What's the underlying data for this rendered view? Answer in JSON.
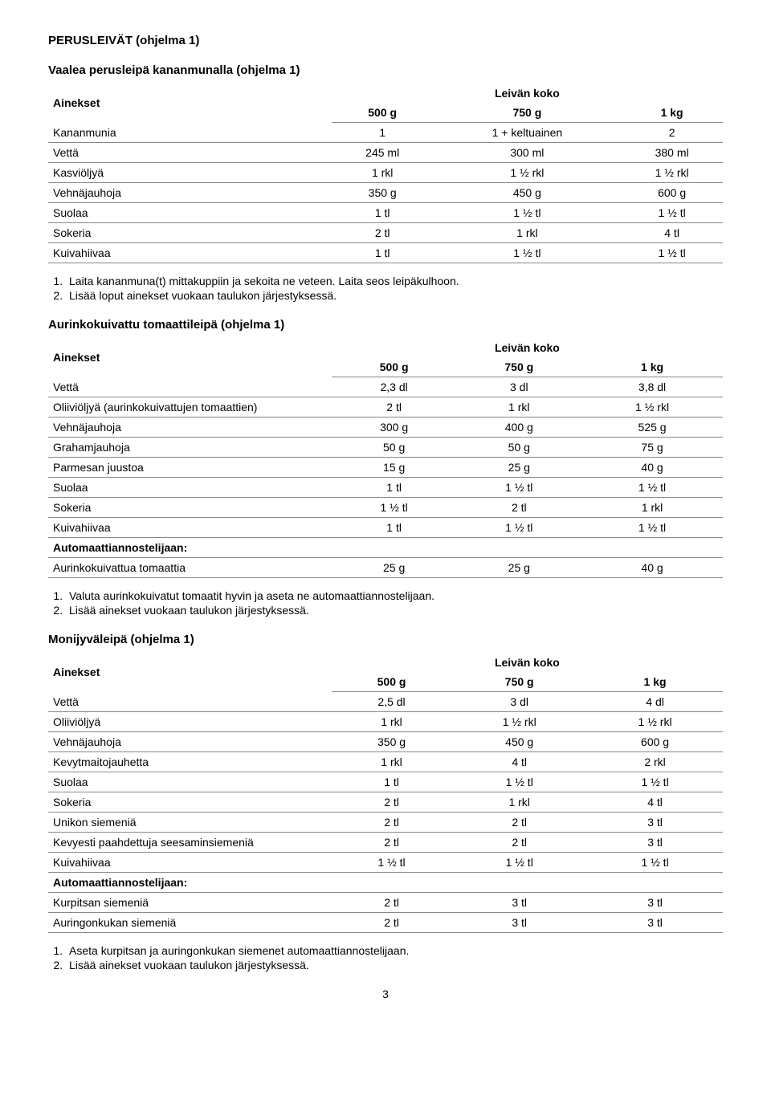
{
  "page": {
    "section_title": "PERUSLEIVÄT (ohjelma 1)",
    "page_number": "3"
  },
  "labels": {
    "ainekset": "Ainekset",
    "leivan_koko": "Leivän koko",
    "automaatti": "Automaattiannostelijaan:"
  },
  "sizes": {
    "s": "500 g",
    "m": "750 g",
    "l": "1 kg"
  },
  "recipe1": {
    "title": "Vaalea perusleipä kananmunalla (ohjelma 1)",
    "rows": [
      {
        "name": "Kananmunia",
        "s": "1",
        "m": "1 + keltuainen",
        "l": "2"
      },
      {
        "name": "Vettä",
        "s": "245 ml",
        "m": "300 ml",
        "l": "380 ml"
      },
      {
        "name": "Kasviöljyä",
        "s": "1 rkl",
        "m": "1 ½ rkl",
        "l": "1 ½ rkl"
      },
      {
        "name": "Vehnäjauhoja",
        "s": "350 g",
        "m": "450 g",
        "l": "600 g"
      },
      {
        "name": "Suolaa",
        "s": "1 tl",
        "m": "1 ½ tl",
        "l": "1 ½ tl"
      },
      {
        "name": "Sokeria",
        "s": "2 tl",
        "m": "1 rkl",
        "l": "4 tl"
      },
      {
        "name": "Kuivahiivaa",
        "s": "1 tl",
        "m": "1 ½ tl",
        "l": "1 ½ tl"
      }
    ],
    "steps": [
      "Laita kananmuna(t) mittakuppiin ja sekoita ne veteen. Laita seos leipäkulhoon.",
      "Lisää loput ainekset vuokaan taulukon järjestyksessä."
    ]
  },
  "recipe2": {
    "title": "Aurinkokuivattu tomaattileipä (ohjelma 1)",
    "rows": [
      {
        "name": "Vettä",
        "s": "2,3 dl",
        "m": "3 dl",
        "l": "3,8 dl"
      },
      {
        "name": "Oliiviöljyä (aurinkokuivattujen tomaattien)",
        "s": "2 tl",
        "m": "1 rkl",
        "l": "1 ½ rkl"
      },
      {
        "name": "Vehnäjauhoja",
        "s": "300 g",
        "m": "400 g",
        "l": "525 g"
      },
      {
        "name": "Grahamjauhoja",
        "s": "50 g",
        "m": "50 g",
        "l": "75 g"
      },
      {
        "name": "Parmesan juustoa",
        "s": "15 g",
        "m": "25 g",
        "l": "40 g"
      },
      {
        "name": "Suolaa",
        "s": "1 tl",
        "m": "1 ½ tl",
        "l": "1 ½ tl"
      },
      {
        "name": "Sokeria",
        "s": "1 ½ tl",
        "m": "2 tl",
        "l": "1 rkl"
      },
      {
        "name": "Kuivahiivaa",
        "s": "1 tl",
        "m": "1 ½ tl",
        "l": "1 ½ tl"
      }
    ],
    "extra_rows": [
      {
        "name": "Aurinkokuivattua tomaattia",
        "s": "25 g",
        "m": "25 g",
        "l": "40 g"
      }
    ],
    "steps": [
      "Valuta aurinkokuivatut tomaatit hyvin ja aseta ne automaattiannostelijaan.",
      "Lisää ainekset vuokaan taulukon järjestyksessä."
    ]
  },
  "recipe3": {
    "title": "Monijyväleipä (ohjelma 1)",
    "rows": [
      {
        "name": "Vettä",
        "s": "2,5 dl",
        "m": "3 dl",
        "l": "4 dl"
      },
      {
        "name": "Oliiviöljyä",
        "s": "1 rkl",
        "m": "1 ½ rkl",
        "l": "1 ½ rkl"
      },
      {
        "name": "Vehnäjauhoja",
        "s": "350 g",
        "m": "450 g",
        "l": "600 g"
      },
      {
        "name": "Kevytmaitojauhetta",
        "s": "1 rkl",
        "m": "4 tl",
        "l": "2 rkl"
      },
      {
        "name": "Suolaa",
        "s": "1 tl",
        "m": "1 ½ tl",
        "l": "1 ½ tl"
      },
      {
        "name": "Sokeria",
        "s": "2 tl",
        "m": "1 rkl",
        "l": "4 tl"
      },
      {
        "name": "Unikon siemeniä",
        "s": "2 tl",
        "m": "2 tl",
        "l": "3 tl"
      },
      {
        "name": "Kevyesti paahdettuja seesaminsiemeniä",
        "s": "2 tl",
        "m": "2 tl",
        "l": "3 tl"
      },
      {
        "name": "Kuivahiivaa",
        "s": "1 ½ tl",
        "m": "1 ½ tl",
        "l": "1 ½ tl"
      }
    ],
    "extra_rows": [
      {
        "name": "Kurpitsan siemeniä",
        "s": "2 tl",
        "m": "3 tl",
        "l": "3 tl"
      },
      {
        "name": "Auringonkukan siemeniä",
        "s": "2 tl",
        "m": "3 tl",
        "l": "3 tl"
      }
    ],
    "steps": [
      "Aseta kurpitsan ja auringonkukan siemenet automaattiannostelijaan.",
      "Lisää ainekset vuokaan taulukon järjestyksessä."
    ]
  }
}
